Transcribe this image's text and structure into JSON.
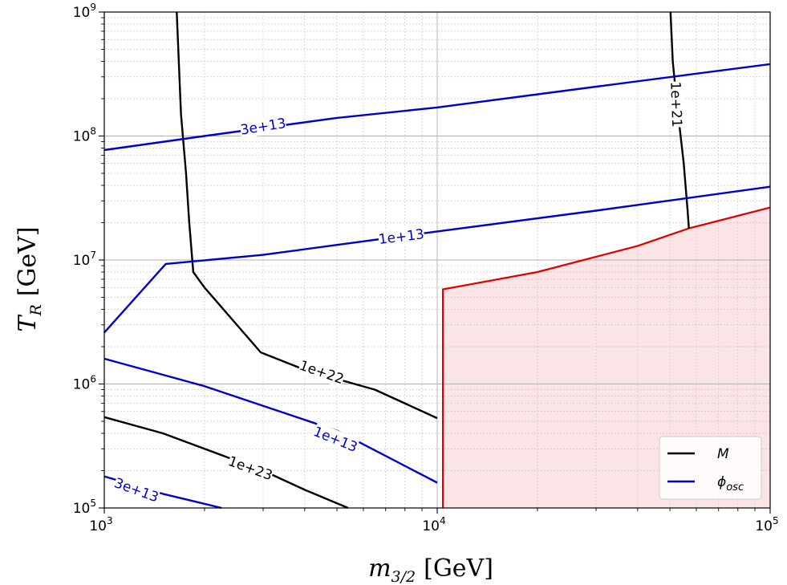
{
  "chart_data": {
    "type": "contour",
    "xscale": "log",
    "yscale": "log",
    "xlim": [
      1000,
      100000
    ],
    "ylim": [
      100000,
      1000000000
    ],
    "xlabel_main": "m",
    "xlabel_sub": "3/2",
    "xlabel_unit": "[GeV]",
    "ylabel_main": "T",
    "ylabel_sub": "R",
    "ylabel_unit": "[GeV]",
    "x_ticks": [
      {
        "value": 1000,
        "base": "10",
        "exp": "3"
      },
      {
        "value": 10000,
        "base": "10",
        "exp": "4"
      },
      {
        "value": 100000,
        "base": "10",
        "exp": "5"
      }
    ],
    "y_ticks": [
      {
        "value": 100000,
        "base": "10",
        "exp": "5"
      },
      {
        "value": 1000000,
        "base": "10",
        "exp": "6"
      },
      {
        "value": 10000000,
        "base": "10",
        "exp": "7"
      },
      {
        "value": 100000000,
        "base": "10",
        "exp": "8"
      },
      {
        "value": 1000000000,
        "base": "10",
        "exp": "9"
      }
    ],
    "grid": true,
    "legend_position": "lower-right",
    "legend": [
      {
        "label": "M",
        "color": "#000000"
      },
      {
        "label": "ϕ",
        "sub": "osc",
        "color": "#0000cc"
      }
    ],
    "colors": {
      "M": "#000000",
      "phi_osc": "#0000cc",
      "excluded": "#dd0000",
      "excluded_fill": "#fbe4e6"
    },
    "series": [
      {
        "group": "M",
        "level": "1e+21",
        "points": [
          [
            50200,
            1000000000
          ],
          [
            51000,
            400000000
          ],
          [
            52500,
            180000000
          ],
          [
            55000,
            60000000
          ],
          [
            56500,
            25000000
          ],
          [
            57000,
            18000000
          ]
        ]
      },
      {
        "group": "M",
        "level": "1e+22",
        "points": [
          [
            1650,
            1000000000
          ],
          [
            1700,
            150000000
          ],
          [
            1760,
            50000000
          ],
          [
            1800,
            20000000
          ],
          [
            1850,
            8000000
          ],
          [
            2000,
            6000000
          ],
          [
            2950,
            1800000
          ],
          [
            4000,
            1300000
          ],
          [
            6500,
            900000
          ],
          [
            10000,
            530000
          ]
        ]
      },
      {
        "group": "M",
        "level": "1e+23",
        "points": [
          [
            1000,
            540000
          ],
          [
            1500,
            400000
          ],
          [
            2000,
            300000
          ],
          [
            3000,
            200000
          ],
          [
            4000,
            140000
          ],
          [
            5400,
            100000
          ]
        ]
      },
      {
        "group": "phi_osc",
        "level": "3e+13",
        "points": [
          [
            1000,
            77000000
          ],
          [
            2000,
            100000000
          ],
          [
            5000,
            140000000
          ],
          [
            10000,
            170000000
          ],
          [
            30000,
            250000000
          ],
          [
            100000,
            380000000
          ]
        ]
      },
      {
        "group": "phi_osc",
        "level": "1e+13",
        "points": [
          [
            1000,
            2600000
          ],
          [
            1530,
            9300000
          ],
          [
            3000,
            11000000
          ],
          [
            10000,
            17000000
          ],
          [
            30000,
            25000000
          ],
          [
            100000,
            39000000
          ]
        ]
      },
      {
        "group": "phi_osc",
        "level": "1e+13",
        "points": [
          [
            1000,
            1600000
          ],
          [
            2000,
            960000
          ],
          [
            5000,
            420000
          ],
          [
            10000,
            160000
          ]
        ]
      },
      {
        "group": "phi_osc",
        "level": "3e+13",
        "points": [
          [
            1000,
            180000
          ],
          [
            1500,
            130000
          ],
          [
            2250,
            100000
          ]
        ]
      }
    ],
    "excluded_region": {
      "boundary": [
        [
          10400,
          100000
        ],
        [
          10400,
          5800000
        ],
        [
          20000,
          8000000
        ],
        [
          40000,
          13000000
        ],
        [
          57000,
          18000000
        ],
        [
          100000,
          26500000
        ]
      ]
    },
    "contour_labels": [
      {
        "text": "1e+21",
        "x": 52300,
        "y": 180000000,
        "rotate": 88,
        "color": "#000000"
      },
      {
        "text": "1e+22",
        "x": 4500,
        "y": 1250000,
        "rotate": 19,
        "color": "#000000"
      },
      {
        "text": "1e+23",
        "x": 2750,
        "y": 210000,
        "rotate": 20,
        "color": "#000000"
      },
      {
        "text": "3e+13",
        "x": 3000,
        "y": 120000000,
        "rotate": -9,
        "color": "#0000cc"
      },
      {
        "text": "1e+13",
        "x": 7800,
        "y": 15500000,
        "rotate": -7,
        "color": "#0000cc"
      },
      {
        "text": "1e+13",
        "x": 4950,
        "y": 360000,
        "rotate": 22,
        "color": "#0000cc"
      },
      {
        "text": "3e+13",
        "x": 1250,
        "y": 140000,
        "rotate": 20,
        "color": "#0000cc"
      }
    ]
  }
}
